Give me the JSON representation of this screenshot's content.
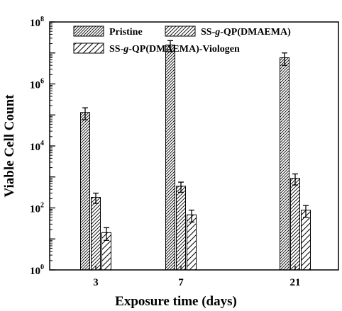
{
  "chart_data": {
    "type": "bar",
    "xlabel": "Exposure time (days)",
    "ylabel": "Viable Cell Count",
    "categories": [
      "3",
      "7",
      "21"
    ],
    "yscale": "log",
    "ylim": [
      1,
      100000000
    ],
    "yticks": [
      {
        "value": 1,
        "base": "10",
        "exp": "0"
      },
      {
        "value": 100,
        "base": "10",
        "exp": "2"
      },
      {
        "value": 10000,
        "base": "10",
        "exp": "4"
      },
      {
        "value": 1000000,
        "base": "10",
        "exp": "6"
      },
      {
        "value": 100000000,
        "base": "10",
        "exp": "8"
      }
    ],
    "series": [
      {
        "name": "Pristine",
        "hatch": "dense",
        "values": [
          120000,
          18000000,
          7000000
        ],
        "errors": [
          50000,
          7000000,
          3000000
        ]
      },
      {
        "name": "SS-g-QP(DMAEMA)",
        "hatch": "sparse",
        "values": [
          220,
          500,
          900
        ],
        "errors": [
          80,
          180,
          350
        ]
      },
      {
        "name": "SS-g-QP(DMAEMA)-Viologen",
        "hatch": "wide",
        "values": [
          16,
          60,
          85
        ],
        "errors": [
          7,
          25,
          35
        ]
      }
    ],
    "legend": {
      "placement": "top",
      "rows": [
        [
          {
            "series": 0,
            "prefix": "Pristine",
            "italic": "",
            "suffix": ""
          },
          {
            "series": 1,
            "prefix": "SS-",
            "italic": "g",
            "suffix": "-QP(DMAEMA)"
          }
        ],
        [
          {
            "series": 2,
            "prefix": "SS-",
            "italic": "g",
            "suffix": "-QP(DMAEMA)-Viologen"
          }
        ]
      ]
    },
    "grid": false
  }
}
